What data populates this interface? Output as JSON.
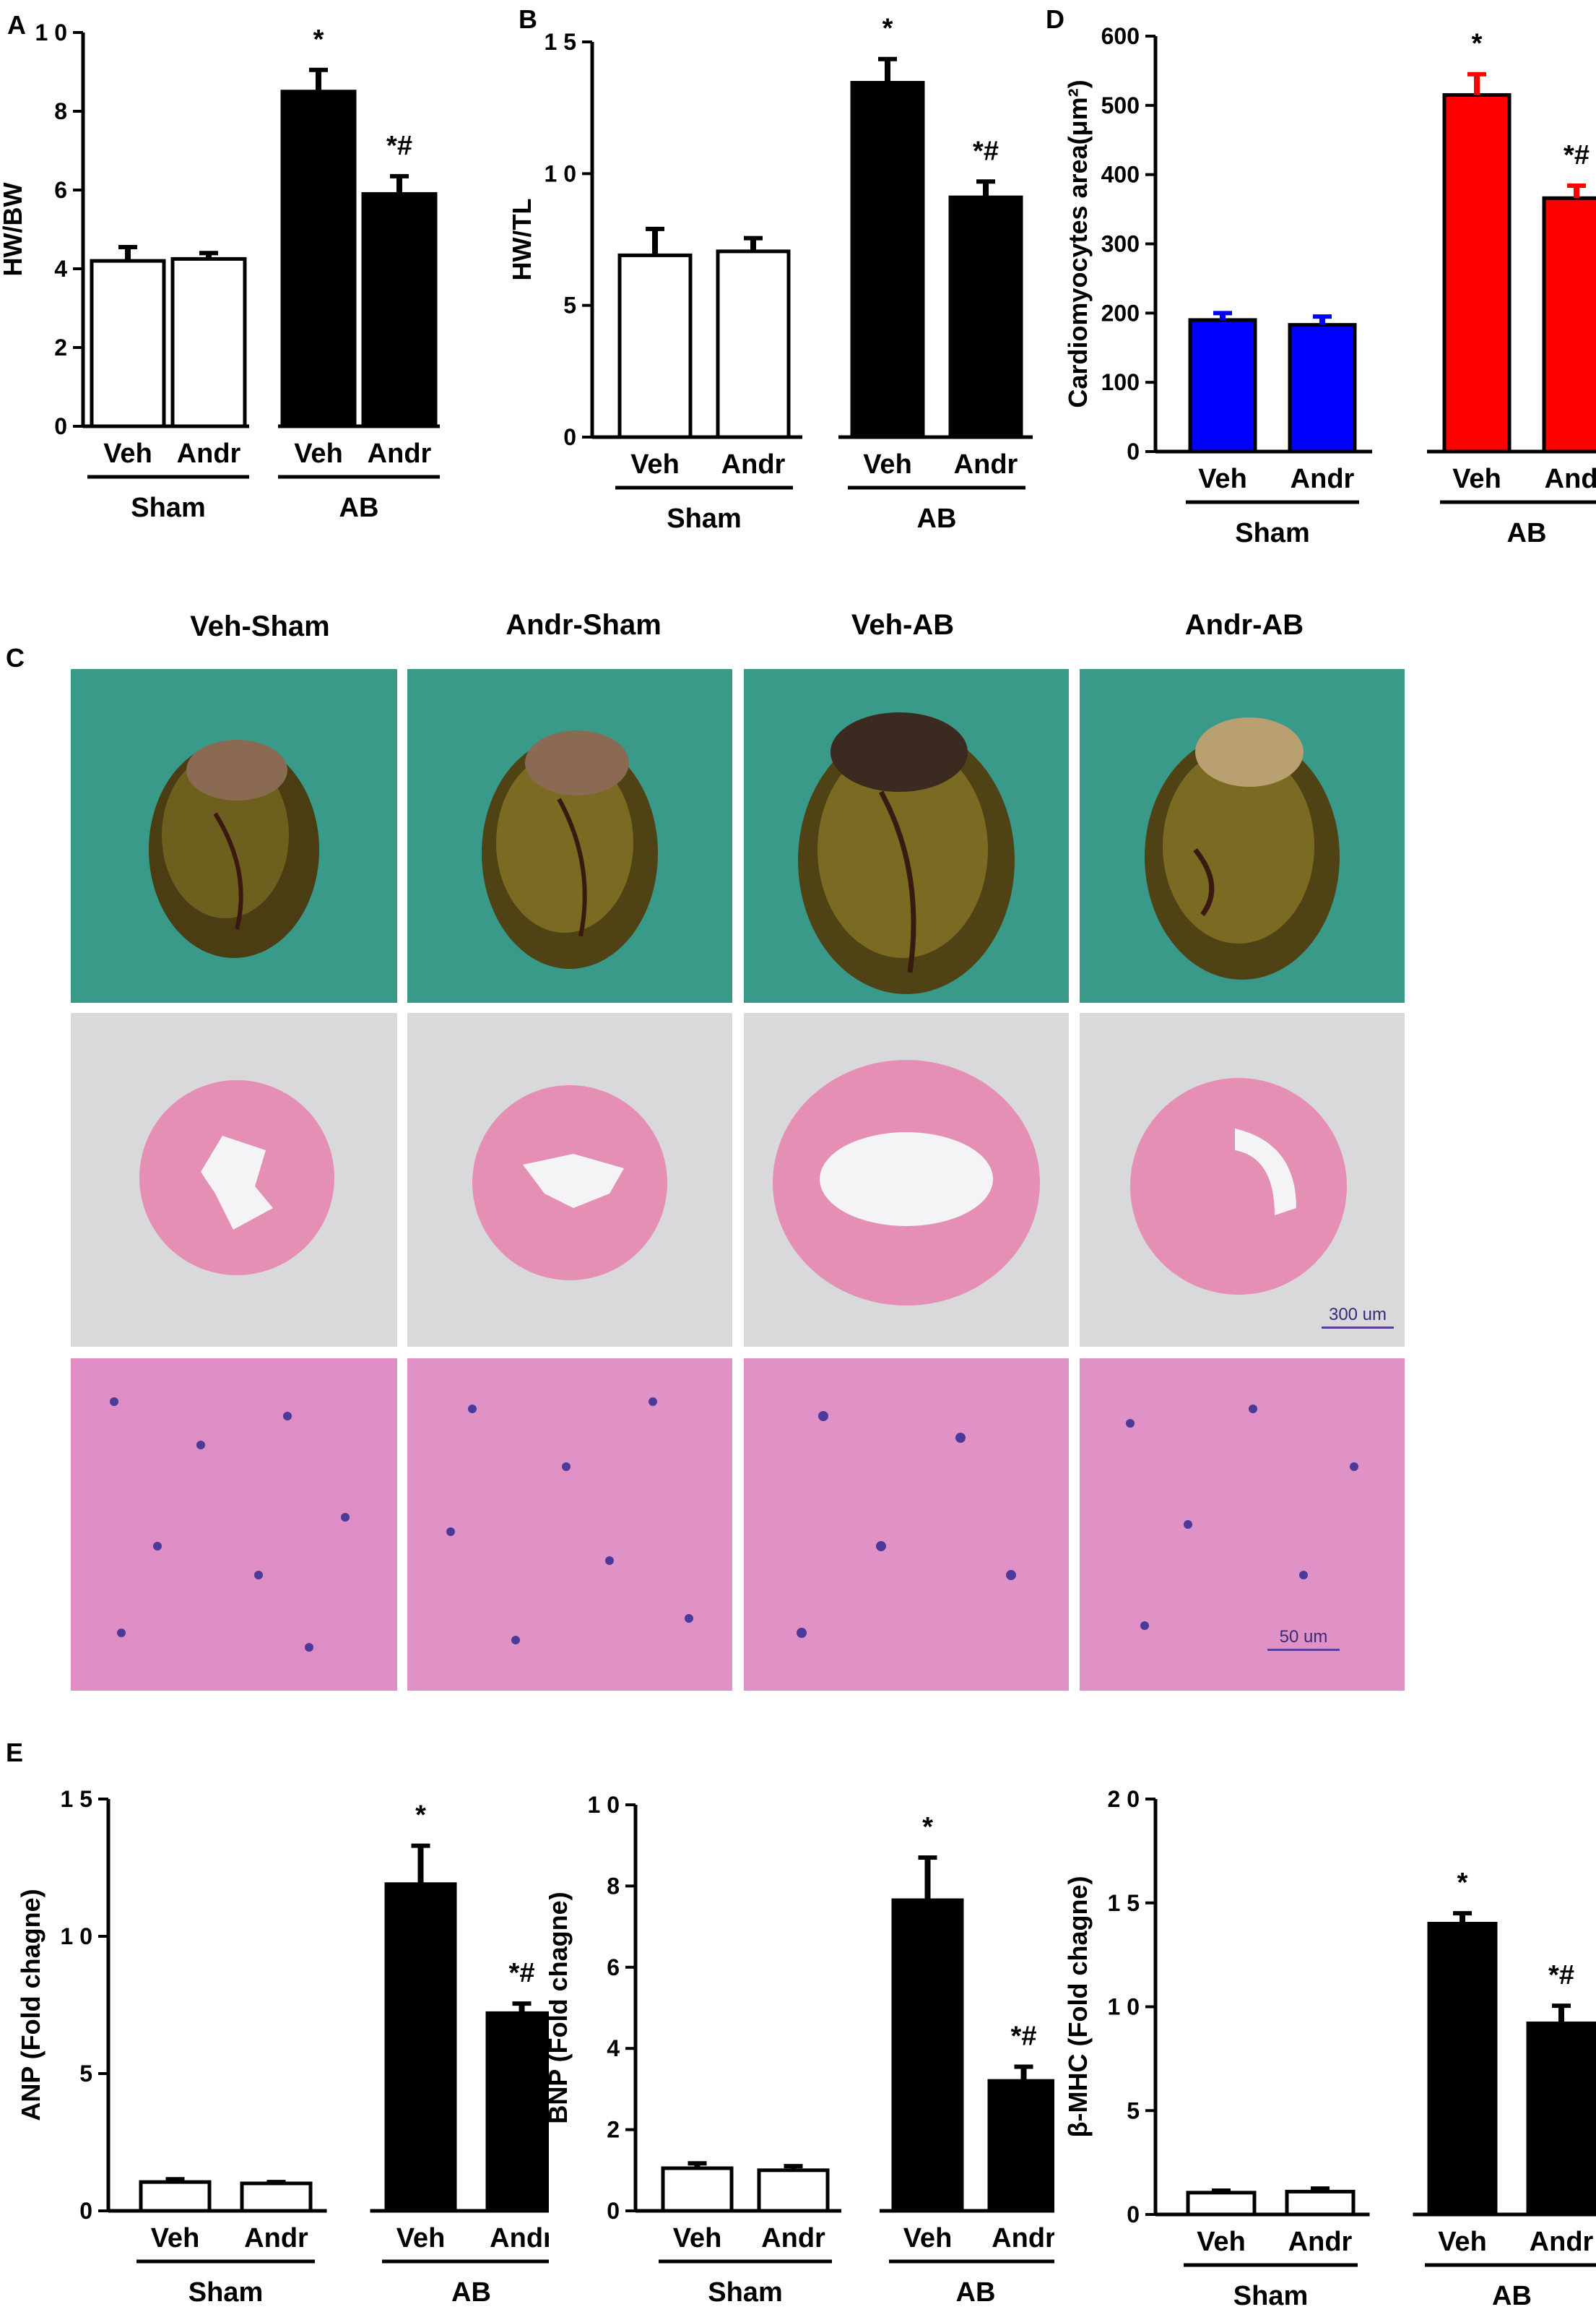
{
  "panels": {
    "A": "A",
    "B": "B",
    "C": "C",
    "D": "D",
    "E": "E"
  },
  "micrograph": {
    "columns": [
      "Veh-Sham",
      "Andr-Sham",
      "Veh-AB",
      "Andr-AB"
    ],
    "scale_bar_low": "300 um",
    "scale_bar_high": "50 um",
    "colors": {
      "photo_bg": "#3a9a8a",
      "he_pink": "#e58fb5",
      "he_high": "#d86fb9"
    }
  },
  "chart_data": [
    {
      "id": "A",
      "type": "bar",
      "categories": [
        "Veh",
        "Andr",
        "Veh",
        "Andr"
      ],
      "groups": [
        "Sham",
        "AB"
      ],
      "values": [
        4.2,
        4.25,
        8.5,
        5.9
      ],
      "errors": [
        0.35,
        0.15,
        0.55,
        0.45
      ],
      "annotations": [
        "",
        "",
        "*",
        "*#"
      ],
      "ylabel": "HW/BW",
      "ylim": [
        0,
        10
      ],
      "yticks": [
        "0",
        "2",
        "4",
        "6",
        "8",
        "1 0"
      ],
      "fills": [
        "#ffffff",
        "#ffffff",
        "#000000",
        "#000000"
      ]
    },
    {
      "id": "B",
      "type": "bar",
      "categories": [
        "Veh",
        "Andr",
        "Veh",
        "Andr"
      ],
      "groups": [
        "Sham",
        "AB"
      ],
      "values": [
        6.9,
        7.05,
        13.45,
        9.1
      ],
      "errors": [
        1.0,
        0.5,
        0.9,
        0.6
      ],
      "annotations": [
        "",
        "",
        "*",
        "*#"
      ],
      "ylabel": "HW/TL",
      "ylim": [
        0,
        15
      ],
      "yticks": [
        "0",
        "5",
        "1 0",
        "1 5"
      ],
      "fills": [
        "#ffffff",
        "#ffffff",
        "#000000",
        "#000000"
      ]
    },
    {
      "id": "D",
      "type": "bar",
      "categories": [
        "Veh",
        "Andr",
        "Veh",
        "Andr"
      ],
      "groups": [
        "Sham",
        "AB"
      ],
      "values": [
        190,
        183,
        515,
        366
      ],
      "errors": [
        10,
        12,
        30,
        18
      ],
      "annotations": [
        "",
        "",
        "*",
        "*#"
      ],
      "ylabel": "Cardiomyocytes area(μm²)",
      "ylim": [
        0,
        600
      ],
      "yticks": [
        "0",
        "100",
        "200",
        "300",
        "400",
        "500",
        "600"
      ],
      "fills": [
        "#0000ff",
        "#0000ff",
        "#ff0000",
        "#ff0000"
      ]
    },
    {
      "id": "E1",
      "type": "bar",
      "categories": [
        "Veh",
        "Andr",
        "Veh",
        "Andr"
      ],
      "groups": [
        "Sham",
        "AB"
      ],
      "values": [
        1.05,
        1.0,
        11.9,
        7.2
      ],
      "errors": [
        0.1,
        0.05,
        1.4,
        0.35
      ],
      "annotations": [
        "",
        "",
        "*",
        "*#"
      ],
      "ylabel": "ANP (Fold chagne)",
      "ylim": [
        0,
        15
      ],
      "yticks": [
        "0",
        "5",
        "1 0",
        "1 5"
      ],
      "fills": [
        "#ffffff",
        "#ffffff",
        "#000000",
        "#000000"
      ]
    },
    {
      "id": "E2",
      "type": "bar",
      "categories": [
        "Veh",
        "Andr",
        "Veh",
        "Andr"
      ],
      "groups": [
        "Sham",
        "AB"
      ],
      "values": [
        1.05,
        1.0,
        7.65,
        3.2
      ],
      "errors": [
        0.12,
        0.1,
        1.05,
        0.35
      ],
      "annotations": [
        "",
        "",
        "*",
        "*#"
      ],
      "ylabel": "BNP (Fold chagne)",
      "ylim": [
        0,
        10
      ],
      "yticks": [
        "0",
        "2",
        "4",
        "6",
        "8",
        "1 0"
      ],
      "fills": [
        "#ffffff",
        "#ffffff",
        "#000000",
        "#000000"
      ]
    },
    {
      "id": "E3",
      "type": "bar",
      "categories": [
        "Veh",
        "Andr",
        "Veh",
        "Andr"
      ],
      "groups": [
        "Sham",
        "AB"
      ],
      "values": [
        1.05,
        1.1,
        14.0,
        9.2
      ],
      "errors": [
        0.1,
        0.15,
        0.5,
        0.85
      ],
      "annotations": [
        "",
        "",
        "*",
        "*#"
      ],
      "ylabel": "β-MHC (Fold chagne)",
      "ylim": [
        0,
        20
      ],
      "yticks": [
        "0",
        "5",
        "1 0",
        "1 5",
        "2 0"
      ],
      "fills": [
        "#ffffff",
        "#ffffff",
        "#000000",
        "#000000"
      ]
    }
  ]
}
